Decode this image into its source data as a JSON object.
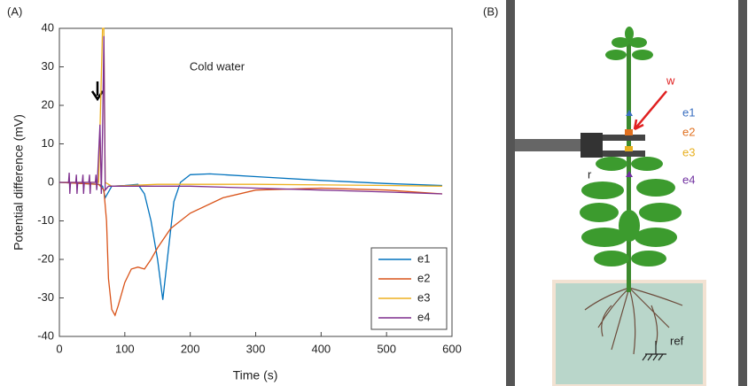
{
  "chart_data": {
    "type": "line",
    "panel_label": "(A)",
    "annotation": "Cold water",
    "xlabel": "Time (s)",
    "ylabel": "Potential difference (mV)",
    "xlim": [
      0,
      600
    ],
    "xticks": [
      0,
      100,
      200,
      300,
      400,
      500,
      600
    ],
    "ylim": [
      -40,
      40
    ],
    "yticks": [
      -40,
      -30,
      -20,
      -10,
      0,
      10,
      20,
      30,
      40
    ],
    "legend": "lower right",
    "series": [
      {
        "name": "e1",
        "color": "#0072bd",
        "x": [
          0,
          60,
          66,
          70,
          80,
          100,
          120,
          130,
          140,
          150,
          158,
          165,
          175,
          185,
          200,
          230,
          300,
          400,
          500,
          585
        ],
        "values": [
          0,
          -0.5,
          -1,
          -4,
          -1,
          -0.8,
          -0.5,
          -3,
          -10,
          -20,
          -30.5,
          -20,
          -5,
          0,
          2,
          2.2,
          1.5,
          0.5,
          -0.3,
          -0.8
        ]
      },
      {
        "name": "e2",
        "color": "#d95319",
        "x": [
          0,
          60,
          68,
          72,
          75,
          80,
          85,
          90,
          100,
          110,
          120,
          130,
          140,
          150,
          170,
          200,
          250,
          300,
          400,
          500,
          585
        ],
        "values": [
          0,
          -0.5,
          -2,
          -10,
          -25,
          -33,
          -34.5,
          -32,
          -26,
          -22.5,
          -22,
          -22.5,
          -20,
          -17,
          -12,
          -8,
          -4,
          -2,
          -1.5,
          -2,
          -3
        ]
      },
      {
        "name": "e3",
        "color": "#edb120",
        "x": [
          0,
          60,
          66,
          68,
          70,
          80,
          150,
          300,
          500,
          585
        ],
        "values": [
          0,
          0,
          40,
          40,
          0,
          -1,
          -0.5,
          -0.5,
          -0.8,
          -1
        ]
      },
      {
        "name": "e4",
        "color": "#7e2f8e",
        "x": [
          0,
          14,
          15,
          16,
          17,
          25,
          26,
          27,
          28,
          35,
          36,
          37,
          38,
          45,
          46,
          47,
          48,
          55,
          56,
          57,
          58,
          62,
          64,
          66,
          68,
          70,
          75,
          100,
          200,
          300,
          400,
          500,
          585
        ],
        "values": [
          0,
          0,
          2.5,
          -3,
          0,
          0,
          2,
          -3,
          0,
          0,
          2,
          -3,
          0,
          0,
          2,
          -3,
          0,
          0,
          2,
          -2,
          0,
          15,
          -3,
          13,
          38,
          -2,
          -1,
          -1,
          -1,
          -1.5,
          -2,
          -2.5,
          -3
        ]
      }
    ]
  },
  "panel_b": {
    "panel_label": "(B)",
    "labels": [
      {
        "text": "w",
        "color": "#e02020"
      },
      {
        "text": "e1",
        "color": "#3a6fc0"
      },
      {
        "text": "e2",
        "color": "#e07020"
      },
      {
        "text": "e3",
        "color": "#e8b020"
      },
      {
        "text": "e4",
        "color": "#7030a0"
      },
      {
        "text": "r",
        "color": "#222222"
      },
      {
        "text": "ref",
        "color": "#222222"
      }
    ]
  }
}
